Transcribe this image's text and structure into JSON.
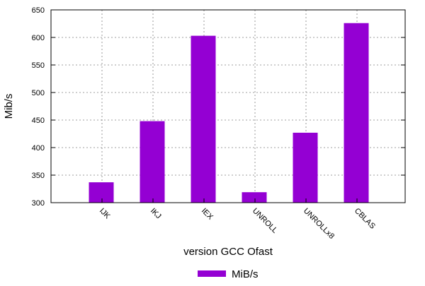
{
  "chart_data": {
    "type": "bar",
    "title": "",
    "xlabel": "version GCC Ofast",
    "ylabel": "Mib/s",
    "categories": [
      "IJK",
      "IKJ",
      "IEX",
      "UNROLL",
      "UNROLLx8",
      "CBLAS"
    ],
    "series": [
      {
        "name": "MiB/s",
        "color": "#9400d3",
        "values": [
          337,
          448,
          603,
          319,
          427,
          626
        ]
      }
    ],
    "ylim": [
      300,
      650
    ],
    "yticks": [
      300,
      350,
      400,
      450,
      500,
      550,
      600,
      650
    ],
    "grid": true,
    "legend_position": "bottom-center"
  }
}
